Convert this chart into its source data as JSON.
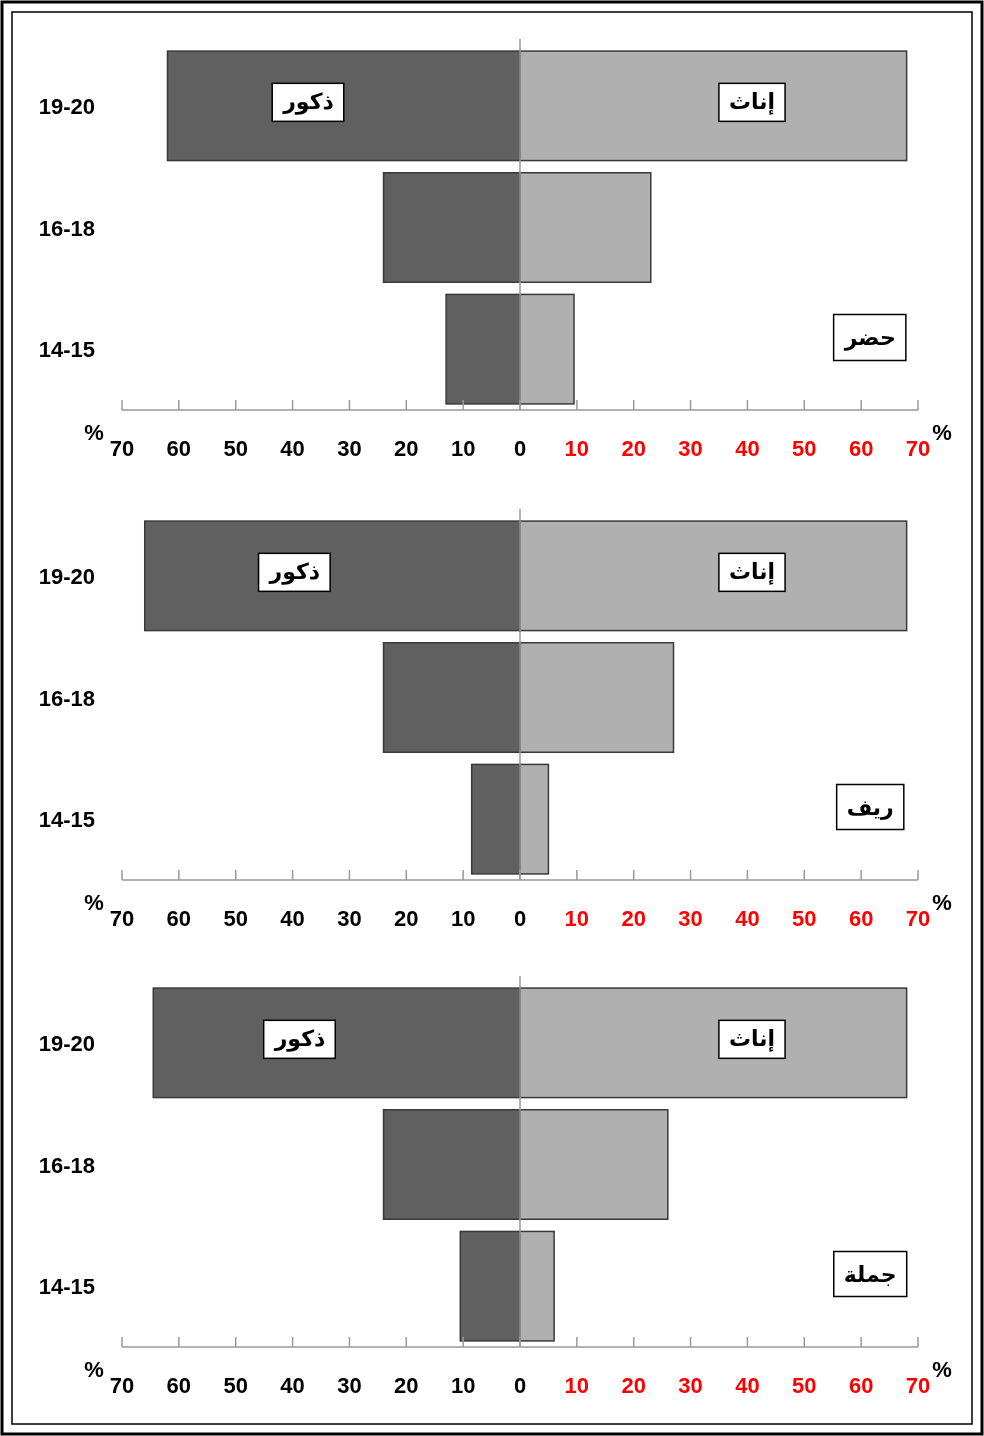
{
  "chart_data": [
    {
      "type": "bar",
      "orientation": "horizontal",
      "stacked": true,
      "title": "حضر",
      "categories": [
        "19-20",
        "16-18",
        "14-15"
      ],
      "series": [
        {
          "name": "ذكور",
          "color": "#606060",
          "values": [
            -62,
            -24,
            -13
          ]
        },
        {
          "name": "إناث",
          "color": "#b0b0b0",
          "values": [
            68,
            23,
            9.5
          ]
        }
      ],
      "xlim": [
        -70,
        70
      ],
      "xticks": [
        {
          "value": -70,
          "label": "70"
        },
        {
          "value": -60,
          "label": "60"
        },
        {
          "value": -50,
          "label": "50"
        },
        {
          "value": -40,
          "label": "40"
        },
        {
          "value": -30,
          "label": "30"
        },
        {
          "value": -20,
          "label": "20"
        },
        {
          "value": -10,
          "label": "10"
        },
        0,
        10,
        20,
        30,
        40,
        50,
        60,
        70
      ],
      "annotations": [
        "%",
        "%"
      ]
    },
    {
      "type": "bar",
      "orientation": "horizontal",
      "stacked": true,
      "title": "ريف",
      "categories": [
        "19-20",
        "16-18",
        "14-15"
      ],
      "series": [
        {
          "name": "ذكور",
          "color": "#606060",
          "values": [
            -66,
            -24,
            -8.5
          ]
        },
        {
          "name": "إناث",
          "color": "#b0b0b0",
          "values": [
            68,
            27,
            5
          ]
        }
      ],
      "xlim": [
        -70,
        70
      ],
      "xticks": [
        {
          "value": -70,
          "label": "70"
        },
        {
          "value": -60,
          "label": "60"
        },
        {
          "value": -50,
          "label": "50"
        },
        {
          "value": -40,
          "label": "40"
        },
        {
          "value": -30,
          "label": "30"
        },
        {
          "value": -20,
          "label": "20"
        },
        {
          "value": -10,
          "label": "10"
        },
        0,
        10,
        20,
        30,
        40,
        50,
        60,
        70
      ],
      "annotations": [
        "%",
        "%"
      ]
    },
    {
      "type": "bar",
      "orientation": "horizontal",
      "stacked": true,
      "title": "جملة",
      "categories": [
        "19-20",
        "16-18",
        "14-15"
      ],
      "series": [
        {
          "name": "ذكور",
          "color": "#606060",
          "values": [
            -64.5,
            -24,
            -10.5
          ]
        },
        {
          "name": "إناث",
          "color": "#b0b0b0",
          "values": [
            68,
            26,
            6
          ]
        }
      ],
      "xlim": [
        -70,
        70
      ],
      "xticks": [
        {
          "value": -70,
          "label": "70"
        },
        {
          "value": -60,
          "label": "60"
        },
        {
          "value": -50,
          "label": "50"
        },
        {
          "value": -40,
          "label": "40"
        },
        {
          "value": -30,
          "label": "30"
        },
        {
          "value": -20,
          "label": "20"
        },
        {
          "value": -10,
          "label": "10"
        },
        0,
        10,
        20,
        30,
        40,
        50,
        60,
        70
      ],
      "annotations": [
        "%",
        "%"
      ]
    }
  ]
}
